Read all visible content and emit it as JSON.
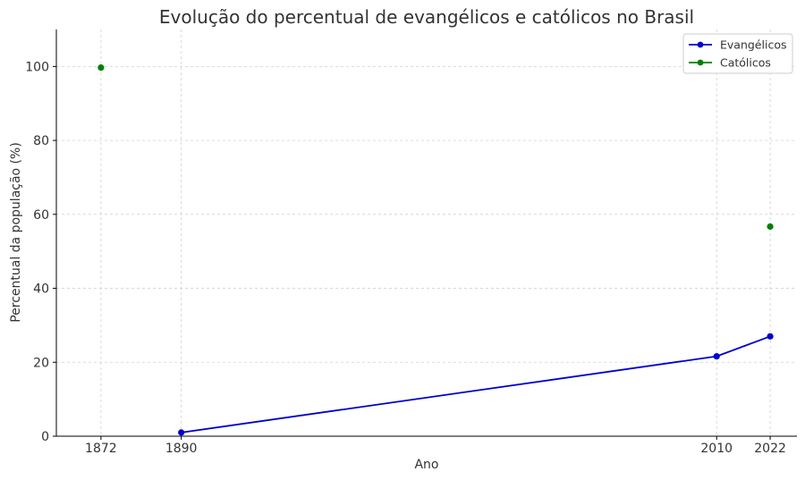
{
  "chart_data": {
    "type": "line",
    "title": "Evolução do percentual de evangélicos e católicos no Brasil",
    "xlabel": "Ano",
    "ylabel": "Percentual da população (%)",
    "xlim": [
      1862,
      2028
    ],
    "ylim": [
      0,
      110
    ],
    "x_ticks": [
      1872,
      1890,
      2010,
      2022
    ],
    "y_ticks": [
      0,
      20,
      40,
      60,
      80,
      100
    ],
    "grid": true,
    "legend_position": "top-right",
    "series": [
      {
        "name": "Evangélicos",
        "color": "#0000cc",
        "points": [
          {
            "x": 1890,
            "y": 1.0
          },
          {
            "x": 2010,
            "y": 21.6
          },
          {
            "x": 2022,
            "y": 27.0
          }
        ]
      },
      {
        "name": "Católicos",
        "color": "#008000",
        "points": [
          {
            "x": 1872,
            "y": 99.7
          },
          {
            "x": 2022,
            "y": 56.7
          }
        ]
      }
    ]
  }
}
